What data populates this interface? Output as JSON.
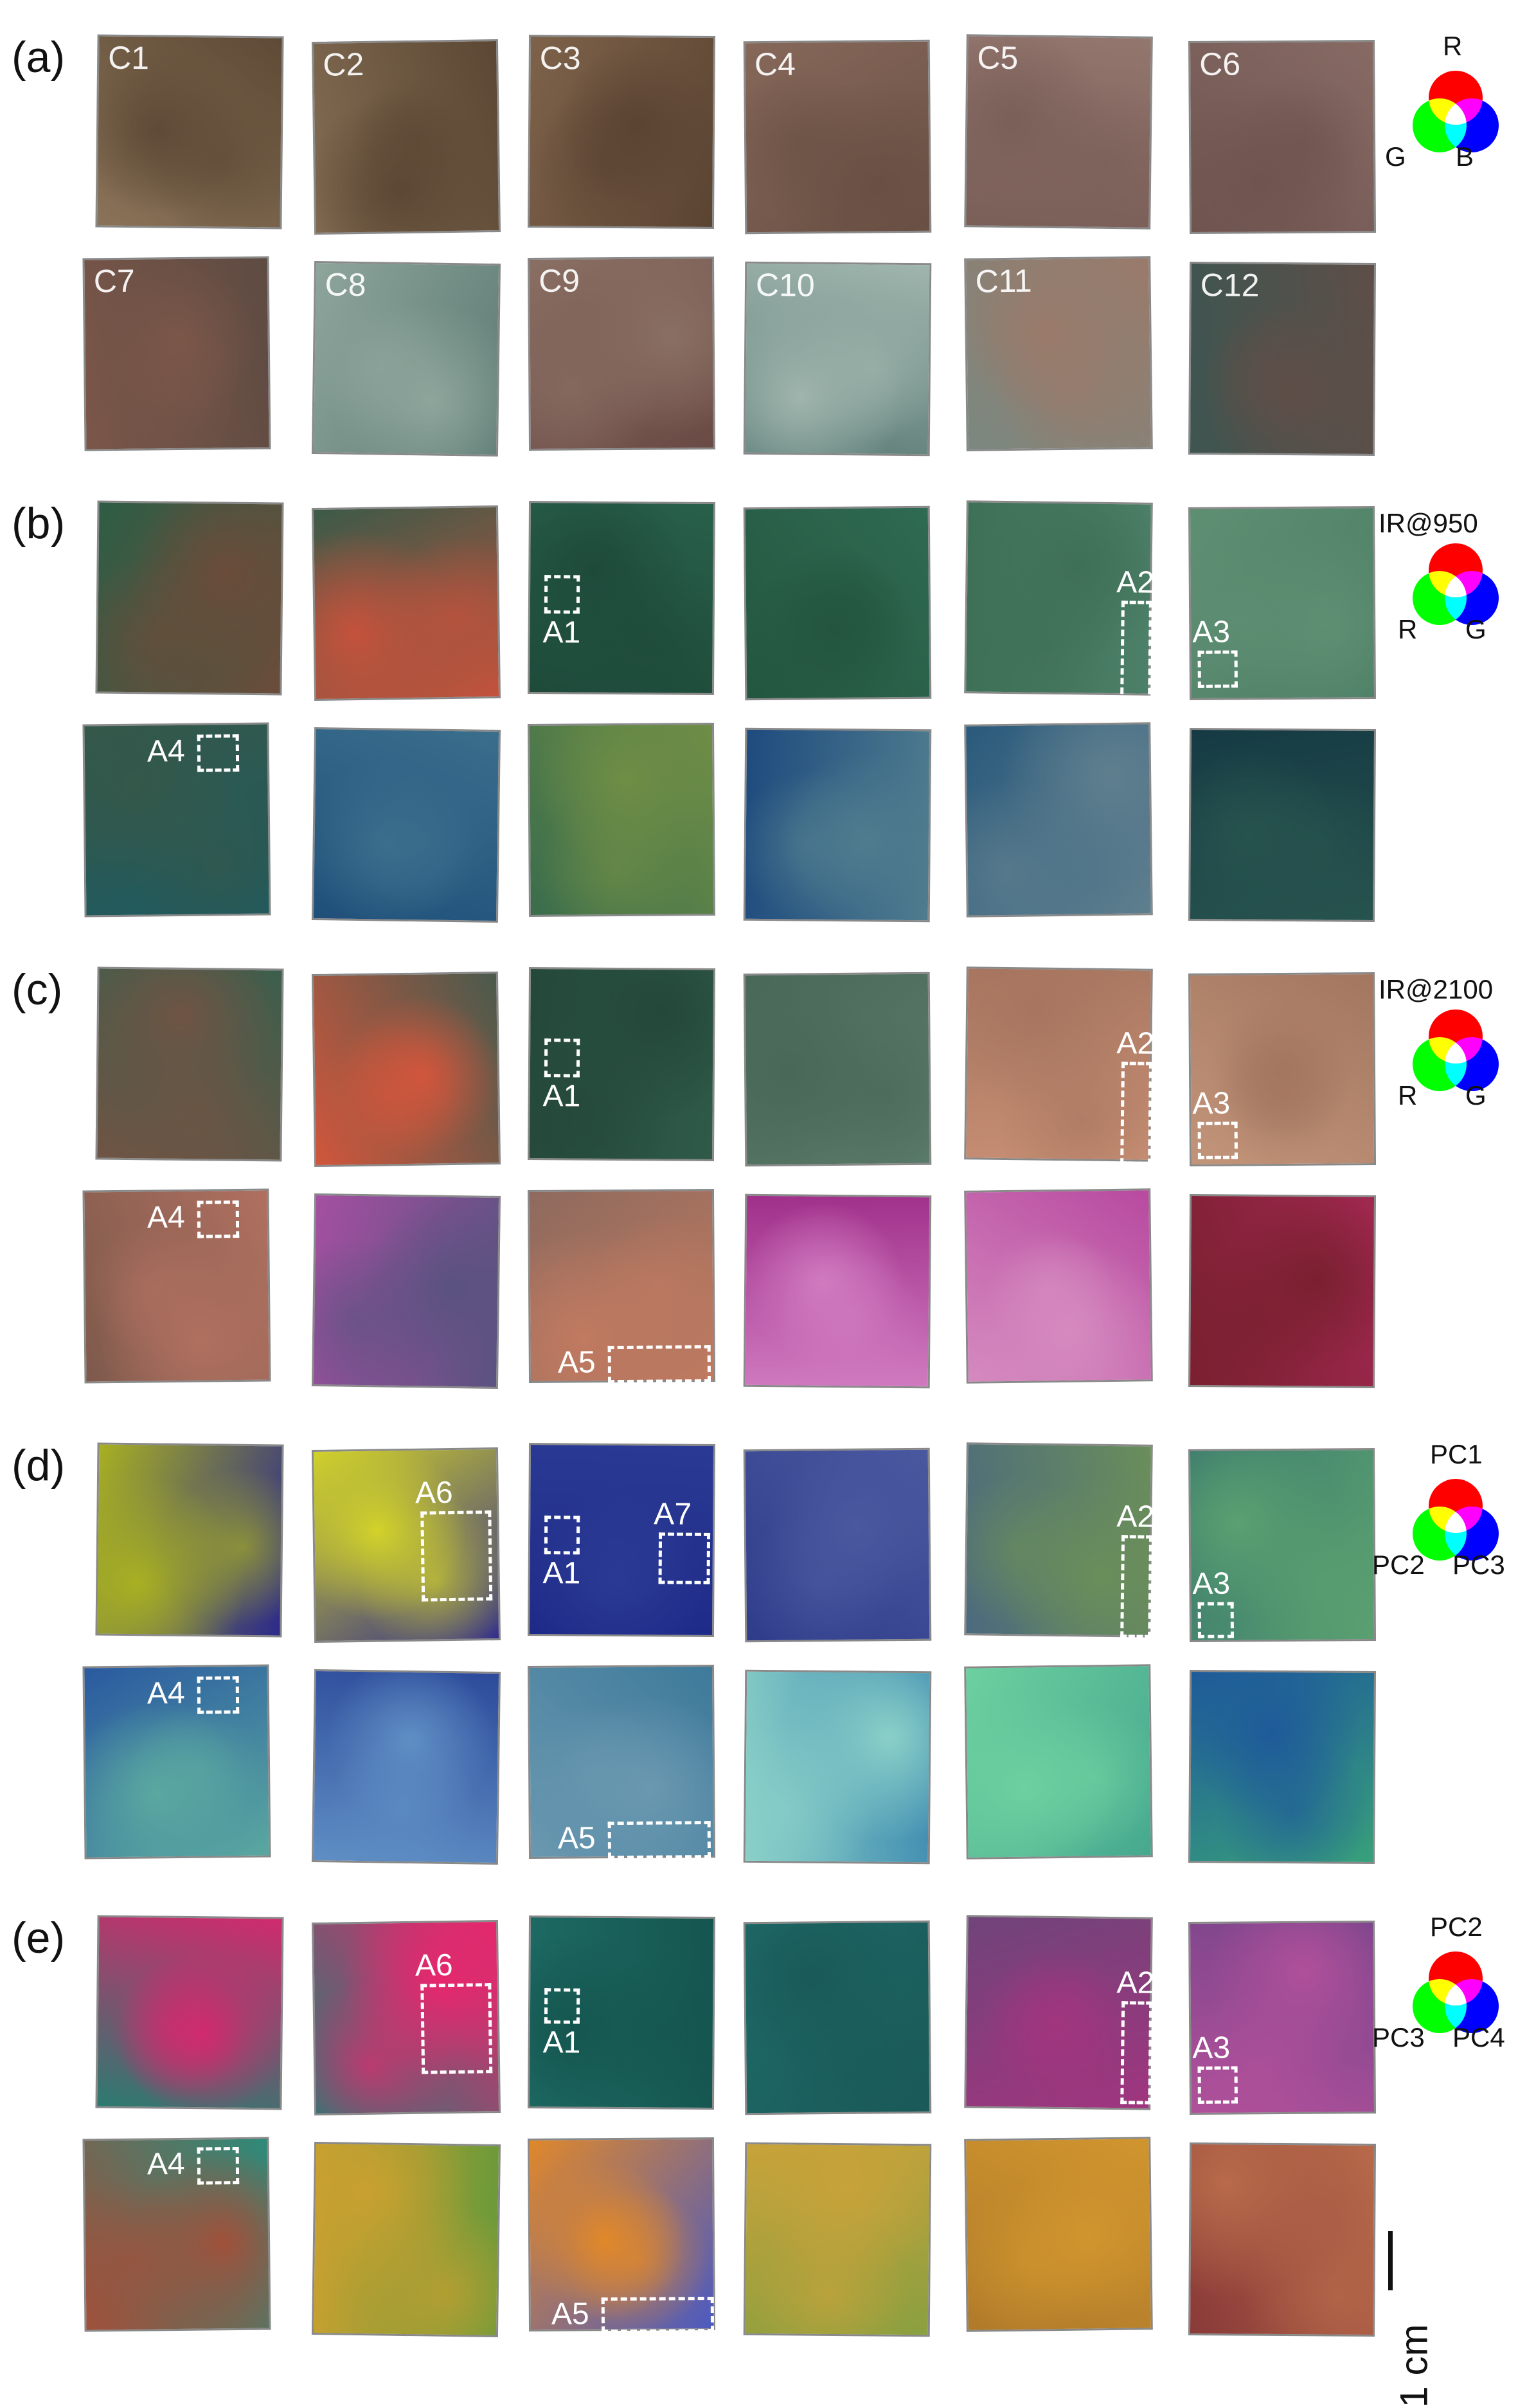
{
  "panels": [
    {
      "label": "(a)",
      "legend": {
        "title": "",
        "channels": [
          "R",
          "G",
          "B"
        ]
      },
      "row1_colors": [
        [
          "#8a7358",
          "#5e4a36"
        ],
        [
          "#836c53",
          "#5b4733"
        ],
        [
          "#7e624a",
          "#5a4432"
        ],
        [
          "#86685a",
          "#6a5044"
        ],
        [
          "#93766e",
          "#7a5f58"
        ],
        [
          "#876a64",
          "#6f5450"
        ]
      ],
      "row2_colors": [
        [
          "#5e4b42",
          "#7a5649"
        ],
        [
          "#5c7a72",
          "#8ea59c"
        ],
        [
          "#6a4a44",
          "#8a6f64"
        ],
        [
          "#5f7e79",
          "#9fb5ad"
        ],
        [
          "#7b8880",
          "#9a7a6a"
        ],
        [
          "#3e5550",
          "#5e4e48"
        ]
      ],
      "samples": [
        "C1",
        "C2",
        "C3",
        "C4",
        "C5",
        "C6",
        "C7",
        "C8",
        "C9",
        "C10",
        "C11",
        "C12"
      ]
    },
    {
      "label": "(b)",
      "legend": {
        "title": "IR@950",
        "channels": [
          "R",
          "G"
        ]
      },
      "row1_colors": [
        [
          "#2e5d45",
          "#6b4c3a"
        ],
        [
          "#3c5a48",
          "#c4523c"
        ],
        [
          "#28604a",
          "#1e4a3a"
        ],
        [
          "#2f6a52",
          "#24563f"
        ],
        [
          "#4d8068",
          "#3e6f57"
        ],
        [
          "#4c7f66",
          "#5f8f73"
        ]
      ],
      "row2_colors": [
        [
          "#1f5a60",
          "#34584a"
        ],
        [
          "#1f4f7a",
          "#3a6e8c"
        ],
        [
          "#3b6d4c",
          "#6f8e46"
        ],
        [
          "#1e4b7e",
          "#4f7c8e"
        ],
        [
          "#2a5a7c",
          "#5f7f8e"
        ],
        [
          "#153a44",
          "#27534e"
        ]
      ],
      "samples": []
    },
    {
      "label": "(c)",
      "legend": {
        "title": "IR@2100",
        "channels": [
          "R",
          "G"
        ]
      },
      "row1_colors": [
        [
          "#3d5e4c",
          "#6f5444"
        ],
        [
          "#4a5a4c",
          "#d0563c"
        ],
        [
          "#2f5a48",
          "#24483a"
        ],
        [
          "#5a7a6a",
          "#4a6858"
        ],
        [
          "#c78f74",
          "#a87660"
        ],
        [
          "#c2957a",
          "#a37660"
        ]
      ],
      "row2_colors": [
        [
          "#7e5a4c",
          "#b07060"
        ],
        [
          "#a350a0",
          "#5a5280"
        ],
        [
          "#8e6a5e",
          "#c07a60"
        ],
        [
          "#a0308a",
          "#d07ac0"
        ],
        [
          "#b84aa0",
          "#d58abf"
        ],
        [
          "#a02850",
          "#7a2030"
        ]
      ],
      "samples": []
    },
    {
      "label": "(d)",
      "legend": {
        "title": "",
        "channels": [
          "PC1",
          "PC2",
          "PC3"
        ]
      },
      "row1_colors": [
        [
          "#2c2a8a",
          "#a8b022"
        ],
        [
          "#34308a",
          "#d2d22a"
        ],
        [
          "#1e2a88",
          "#2a3a94"
        ],
        [
          "#2e3c8a",
          "#4a58a0"
        ],
        [
          "#4c6a7e",
          "#6a8e5a"
        ],
        [
          "#3c7a6e",
          "#5aa070"
        ]
      ],
      "row2_colors": [
        [
          "#2a5aa0",
          "#5aa8a0"
        ],
        [
          "#2c4a9a",
          "#5f8ec4"
        ],
        [
          "#3e7a9a",
          "#6a98b0"
        ],
        [
          "#3c88b0",
          "#8ad0c8"
        ],
        [
          "#46a88e",
          "#6cd0a0"
        ],
        [
          "#38a07a",
          "#1e5a9a"
        ]
      ],
      "samples": []
    },
    {
      "label": "(e)",
      "legend": {
        "title": "",
        "channels": [
          "PC2",
          "PC3",
          "PC4"
        ]
      },
      "row1_colors": [
        [
          "#2c7a70",
          "#d02a6e"
        ],
        [
          "#2a7a74",
          "#e8266e"
        ],
        [
          "#1e6a64",
          "#15554f"
        ],
        [
          "#1e6a68",
          "#1a5a58"
        ],
        [
          "#70447a",
          "#a0357e"
        ],
        [
          "#75448a",
          "#b0509a"
        ]
      ],
      "row2_colors": [
        [
          "#2e8a7a",
          "#a0503a"
        ],
        [
          "#6a9a3a",
          "#c8a030"
        ],
        [
          "#4c5ac0",
          "#e0882a"
        ],
        [
          "#8aa040",
          "#c8a23a"
        ],
        [
          "#b07a2a",
          "#d0952e"
        ],
        [
          "#8a3a38",
          "#b86a4a"
        ]
      ],
      "samples": []
    }
  ],
  "regions": {
    "A1": "A1",
    "A2": "A2",
    "A3": "A3",
    "A4": "A4",
    "A5": "A5",
    "A6": "A6",
    "A7": "A7"
  },
  "scale_bar": {
    "label": "1 cm"
  }
}
